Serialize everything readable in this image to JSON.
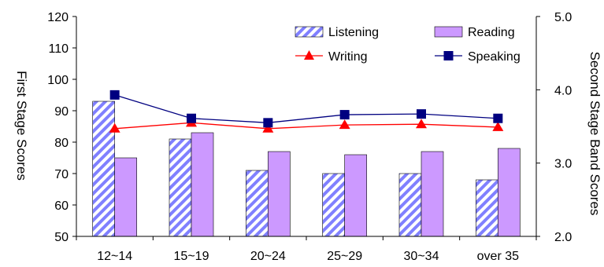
{
  "chart_data": {
    "type": "bar",
    "categories": [
      "12~14",
      "15~19",
      "20~24",
      "25~29",
      "30~34",
      "over 35"
    ],
    "series": [
      {
        "name": "Listening",
        "type": "bar",
        "axis": "left",
        "color": "#8080ff",
        "pattern": "diagonal-hatch",
        "values": [
          93,
          81,
          71,
          70,
          70,
          68
        ]
      },
      {
        "name": "Reading",
        "type": "bar",
        "axis": "left",
        "color": "#cc99ff",
        "values": [
          75,
          83,
          77,
          76,
          77,
          78
        ]
      },
      {
        "name": "Writing",
        "type": "line",
        "axis": "right",
        "color": "#ff0000",
        "marker": "triangle",
        "values": [
          3.47,
          3.55,
          3.47,
          3.52,
          3.53,
          3.49
        ]
      },
      {
        "name": "Speaking",
        "type": "line",
        "axis": "right",
        "color": "#000080",
        "marker": "square",
        "values": [
          3.93,
          3.61,
          3.55,
          3.66,
          3.67,
          3.61
        ]
      }
    ],
    "y_left": {
      "label": "First Stage Scores",
      "ylim": [
        50,
        120
      ],
      "ticks": [
        "50",
        "60",
        "70",
        "80",
        "90",
        "100",
        "110",
        "120"
      ]
    },
    "y_right": {
      "label": "Second Stage Band Scores",
      "ylim": [
        2.0,
        5.0
      ],
      "ticks": [
        "2.0",
        "3.0",
        "4.0",
        "5.0"
      ]
    },
    "legend": {
      "placement": "top-right",
      "columns": 2
    },
    "grid": false
  }
}
